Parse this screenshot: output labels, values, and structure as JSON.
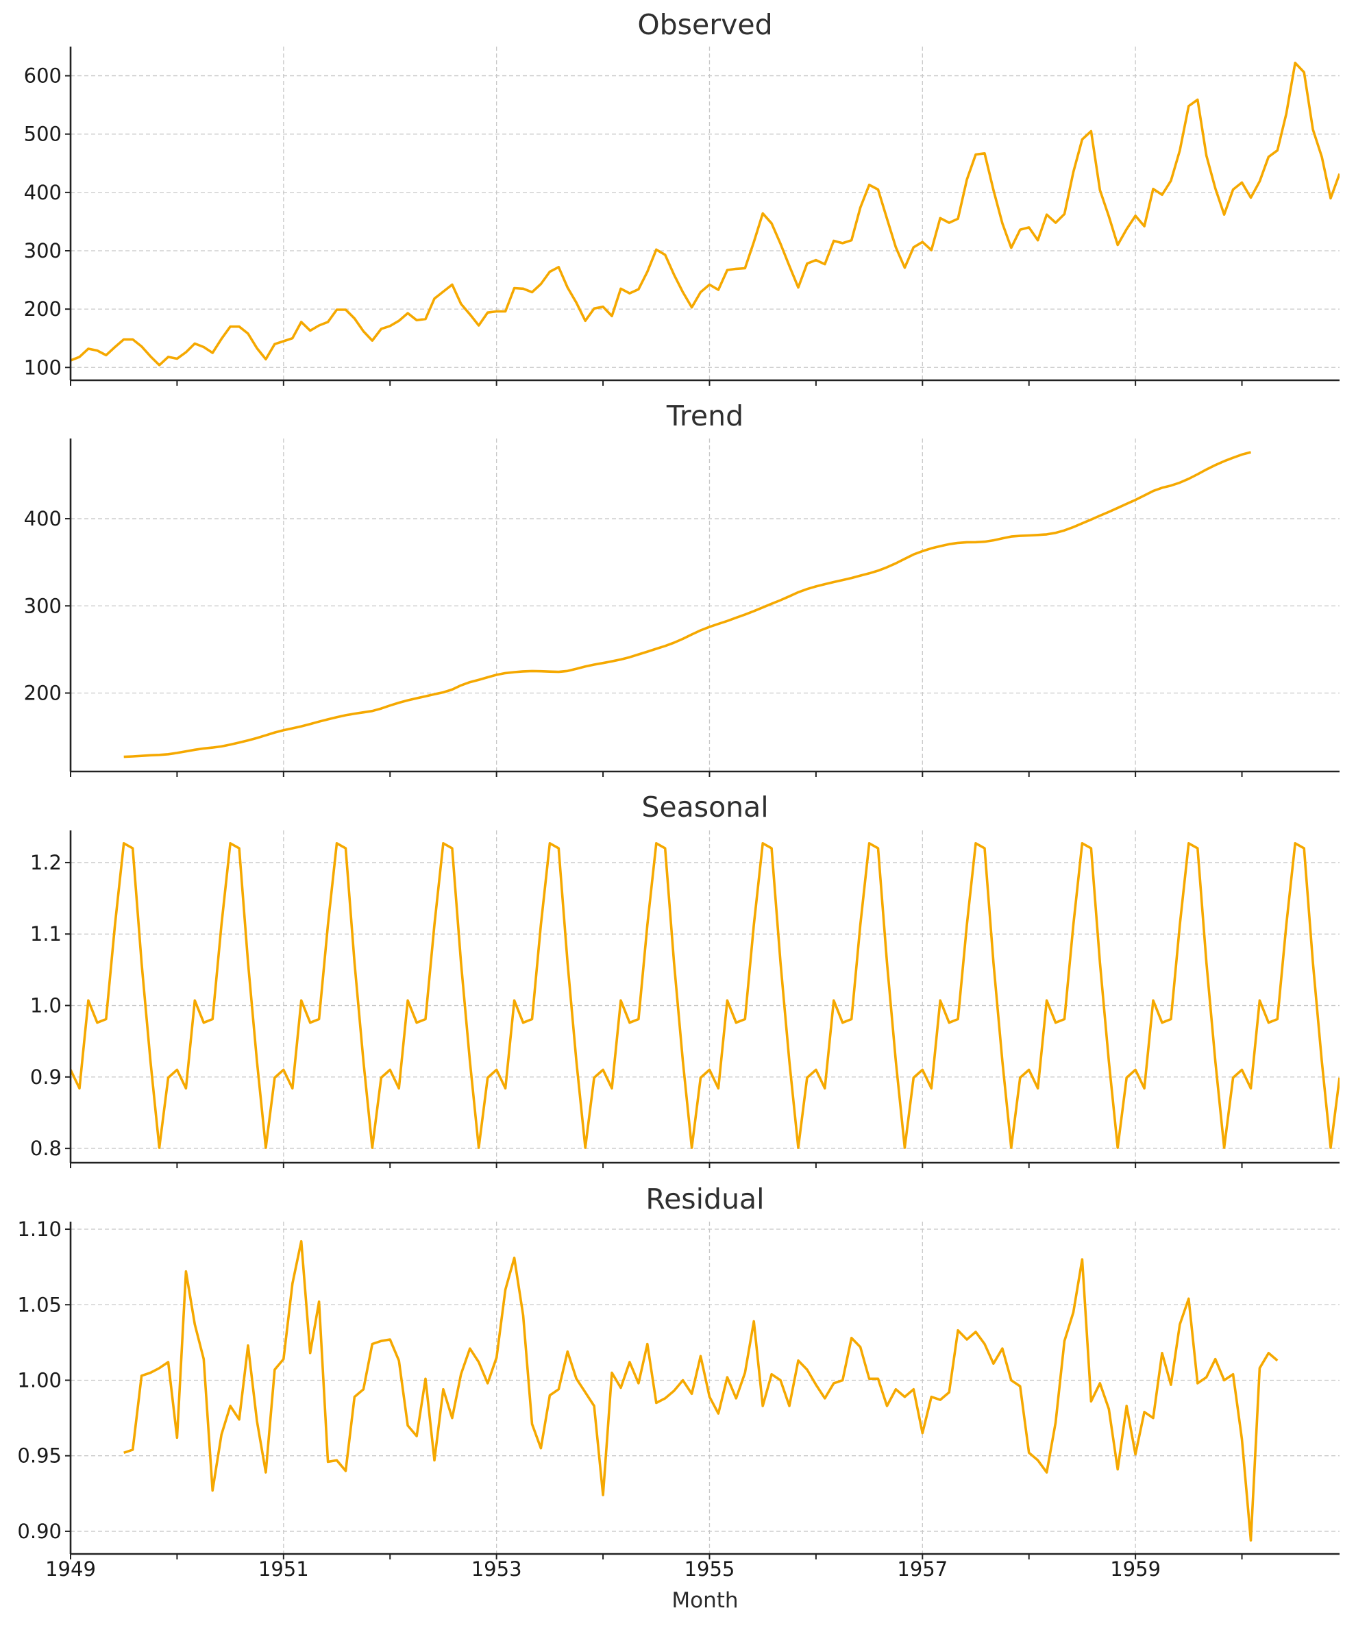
{
  "chart_data": [
    {
      "type": "line",
      "title": "Observed",
      "series": [
        {
          "values": [
            112,
            118,
            132,
            129,
            121,
            135,
            148,
            148,
            136,
            119,
            104,
            118,
            115,
            126,
            141,
            135,
            125,
            149,
            170,
            170,
            158,
            133,
            114,
            140,
            145,
            150,
            178,
            163,
            172,
            178,
            199,
            199,
            184,
            162,
            146,
            166,
            171,
            180,
            193,
            181,
            183,
            218,
            230,
            242,
            209,
            191,
            172,
            194,
            196,
            196,
            236,
            235,
            229,
            243,
            264,
            272,
            237,
            211,
            180,
            201,
            204,
            188,
            235,
            227,
            234,
            264,
            302,
            293,
            259,
            229,
            203,
            229,
            242,
            233,
            267,
            269,
            270,
            315,
            364,
            347,
            312,
            274,
            237,
            278,
            284,
            277,
            317,
            313,
            318,
            374,
            413,
            405,
            355,
            306,
            271,
            306,
            315,
            301,
            356,
            348,
            355,
            422,
            465,
            467,
            404,
            347,
            305,
            336,
            340,
            318,
            362,
            348,
            363,
            435,
            491,
            505,
            404,
            359,
            310,
            337,
            360,
            342,
            406,
            396,
            420,
            472,
            548,
            559,
            463,
            407,
            362,
            405,
            417,
            391,
            419,
            461,
            472,
            535,
            622,
            606,
            508,
            461,
            390,
            432
          ]
        }
      ],
      "y_ticks": [
        "100",
        "200",
        "300",
        "400",
        "500",
        "600"
      ],
      "ylim": [
        78,
        650
      ],
      "grid": true
    },
    {
      "type": "line",
      "title": "Trend",
      "series": [
        {
          "start_index": 6,
          "values": [
            126.8,
            127.3,
            127.9,
            128.6,
            129.0,
            129.8,
            131.3,
            133.1,
            134.9,
            136.4,
            137.4,
            138.8,
            140.9,
            143.2,
            145.7,
            148.4,
            151.5,
            154.7,
            157.3,
            159.5,
            161.8,
            164.5,
            167.2,
            169.8,
            172.3,
            174.5,
            176.3,
            177.8,
            179.4,
            182.2,
            185.7,
            188.9,
            191.7,
            194.0,
            196.3,
            198.7,
            200.8,
            204.0,
            208.8,
            212.5,
            215.2,
            218.1,
            220.9,
            222.9,
            224.0,
            224.8,
            225.2,
            225.0,
            224.6,
            224.3,
            225.3,
            227.8,
            230.4,
            232.6,
            234.4,
            236.4,
            238.5,
            241.1,
            244.3,
            247.5,
            250.8,
            254.0,
            257.8,
            262.2,
            267.2,
            271.9,
            275.9,
            279.3,
            282.7,
            286.4,
            290.1,
            294.0,
            298.2,
            302.4,
            306.5,
            311.0,
            315.6,
            319.3,
            322.3,
            324.9,
            327.3,
            329.6,
            332.0,
            334.7,
            337.3,
            340.4,
            344.3,
            348.8,
            354.0,
            359.0,
            362.8,
            366.0,
            368.5,
            370.8,
            372.2,
            373.0,
            373.1,
            373.6,
            375.2,
            377.5,
            379.5,
            380.3,
            380.8,
            381.3,
            382.0,
            383.8,
            386.6,
            390.4,
            394.7,
            399.0,
            403.5,
            407.8,
            412.4,
            417.0,
            421.6,
            426.7,
            431.8,
            435.5,
            438.0,
            441.4,
            445.8,
            451.0,
            456.5,
            461.5,
            466.0,
            469.9,
            473.6,
            476.3
          ]
        }
      ],
      "y_ticks": [
        "200",
        "300",
        "400"
      ],
      "ylim": [
        110,
        492
      ],
      "grid": true
    },
    {
      "type": "line",
      "title": "Seasonal",
      "series": [
        {
          "pattern": [
            0.91,
            0.884,
            1.007,
            0.976,
            0.981,
            1.113,
            1.227,
            1.22,
            1.06,
            0.922,
            0.801,
            0.899
          ],
          "cycles": 12
        }
      ],
      "y_ticks": [
        "0.8",
        "0.9",
        "1.0",
        "1.1",
        "1.2"
      ],
      "ylim": [
        0.78,
        1.245
      ],
      "grid": true
    },
    {
      "type": "line",
      "title": "Residual",
      "series": [
        {
          "start_index": 6,
          "values": [
            0.952,
            0.954,
            1.003,
            1.005,
            1.008,
            1.012,
            0.962,
            1.072,
            1.037,
            1.014,
            0.927,
            0.964,
            0.983,
            0.974,
            1.023,
            0.973,
            0.939,
            1.007,
            1.014,
            1.064,
            1.092,
            1.018,
            1.052,
            0.946,
            0.947,
            0.94,
            0.989,
            0.994,
            1.024,
            1.026,
            1.027,
            1.013,
            0.97,
            0.963,
            1.001,
            0.947,
            0.994,
            0.975,
            1.004,
            1.021,
            1.012,
            0.998,
            1.015,
            1.06,
            1.081,
            1.043,
            0.971,
            0.955,
            0.99,
            0.994,
            1.019,
            1.001,
            0.992,
            0.983,
            0.924,
            1.005,
            0.995,
            1.012,
            0.998,
            1.024,
            0.985,
            0.988,
            0.993,
            1.0,
            0.991,
            1.016,
            0.989,
            0.978,
            1.002,
            0.988,
            1.005,
            1.039,
            0.983,
            1.004,
            1.0,
            0.983,
            1.013,
            1.007,
            0.997,
            0.988,
            0.998,
            1.0,
            1.028,
            1.022,
            1.001,
            1.001,
            0.983,
            0.994,
            0.989,
            0.994,
            0.965,
            0.989,
            0.987,
            0.992,
            1.033,
            1.027,
            1.032,
            1.024,
            1.011,
            1.021,
            1.0,
            0.996,
            0.952,
            0.947,
            0.939,
            0.972,
            1.026,
            1.045,
            1.08,
            0.986,
            0.998,
            0.981,
            0.941,
            0.983,
            0.951,
            0.979,
            0.975,
            1.018,
            0.997,
            1.037,
            1.054,
            0.998,
            1.002,
            1.014,
            1.0,
            1.004,
            0.961,
            0.894,
            1.008,
            1.018,
            1.013
          ]
        }
      ],
      "y_ticks": [
        "0.90",
        "0.95",
        "1.00",
        "1.05",
        "1.10"
      ],
      "ylim": [
        0.885,
        1.105
      ],
      "grid": true
    }
  ],
  "shared_x": {
    "label": "Month",
    "start": "1949-01",
    "end": "1960-12",
    "range": [
      "1949-01",
      "1960-12"
    ],
    "tick_labels": [
      "1949",
      "1951",
      "1953",
      "1955",
      "1957",
      "1959"
    ],
    "minor_ticks": [
      "1950",
      "1952",
      "1954",
      "1956",
      "1958",
      "1960"
    ]
  },
  "line_color": "#f5a800"
}
